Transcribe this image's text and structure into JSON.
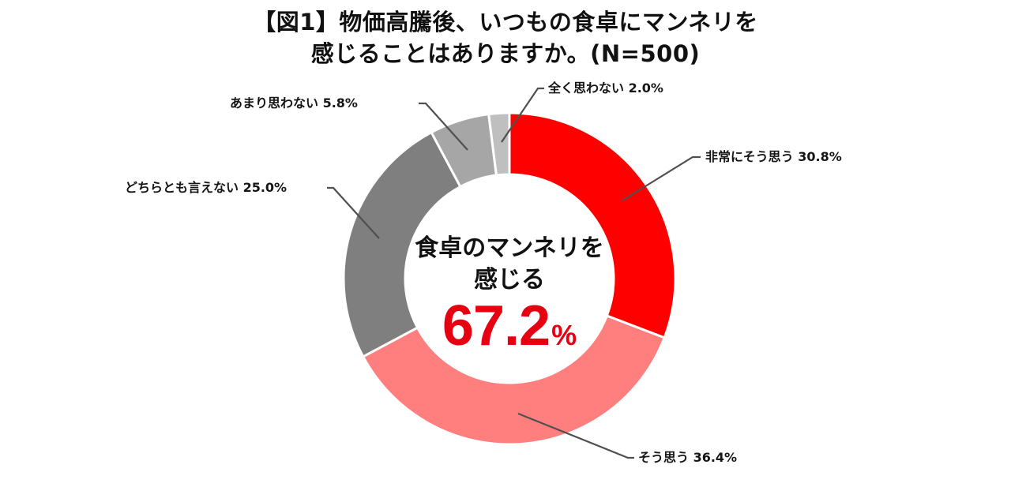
{
  "title": {
    "line1": "【図1】物価高騰後、いつもの食卓にマンネリを",
    "line2": "感じることはありますか。(N=500)"
  },
  "center": {
    "line1": "食卓のマンネリを",
    "line2": "感じる",
    "value": "67.2",
    "unit": "%"
  },
  "labels": {
    "strongly_agree": "非常にそう思う 30.8%",
    "agree": "そう思う 36.4%",
    "neutral": "どちらとも言えない 25.0%",
    "somewhat_disagree": "あまり思わない 5.8%",
    "strongly_disagree": "全く思わない 2.0%"
  },
  "colors": {
    "strongly_agree": "#ff0000",
    "agree": "#ff7f7f",
    "neutral": "#7f7f7f",
    "somewhat_disagree": "#a6a6a6",
    "strongly_disagree": "#bfbfbf",
    "center_value": "#e60012",
    "leader_line": "#505050"
  },
  "chart_data": {
    "type": "pie",
    "variant": "donut",
    "title": "【図1】物価高騰後、いつもの食卓にマンネリを感じることはありますか。(N=500)",
    "categories": [
      "非常にそう思う",
      "そう思う",
      "どちらとも言えない",
      "あまり思わない",
      "全く思わない"
    ],
    "values": [
      30.8,
      36.4,
      25.0,
      5.8,
      2.0
    ],
    "unit": "%",
    "n": 500,
    "start_angle": "12 o'clock",
    "direction": "clockwise",
    "colors": [
      "#ff0000",
      "#ff7f7f",
      "#7f7f7f",
      "#a6a6a6",
      "#bfbfbf"
    ],
    "center_annotation": {
      "text": "食卓のマンネリを感じる",
      "value": 67.2,
      "unit": "%"
    },
    "legend": "none (data labels with leader lines)"
  }
}
